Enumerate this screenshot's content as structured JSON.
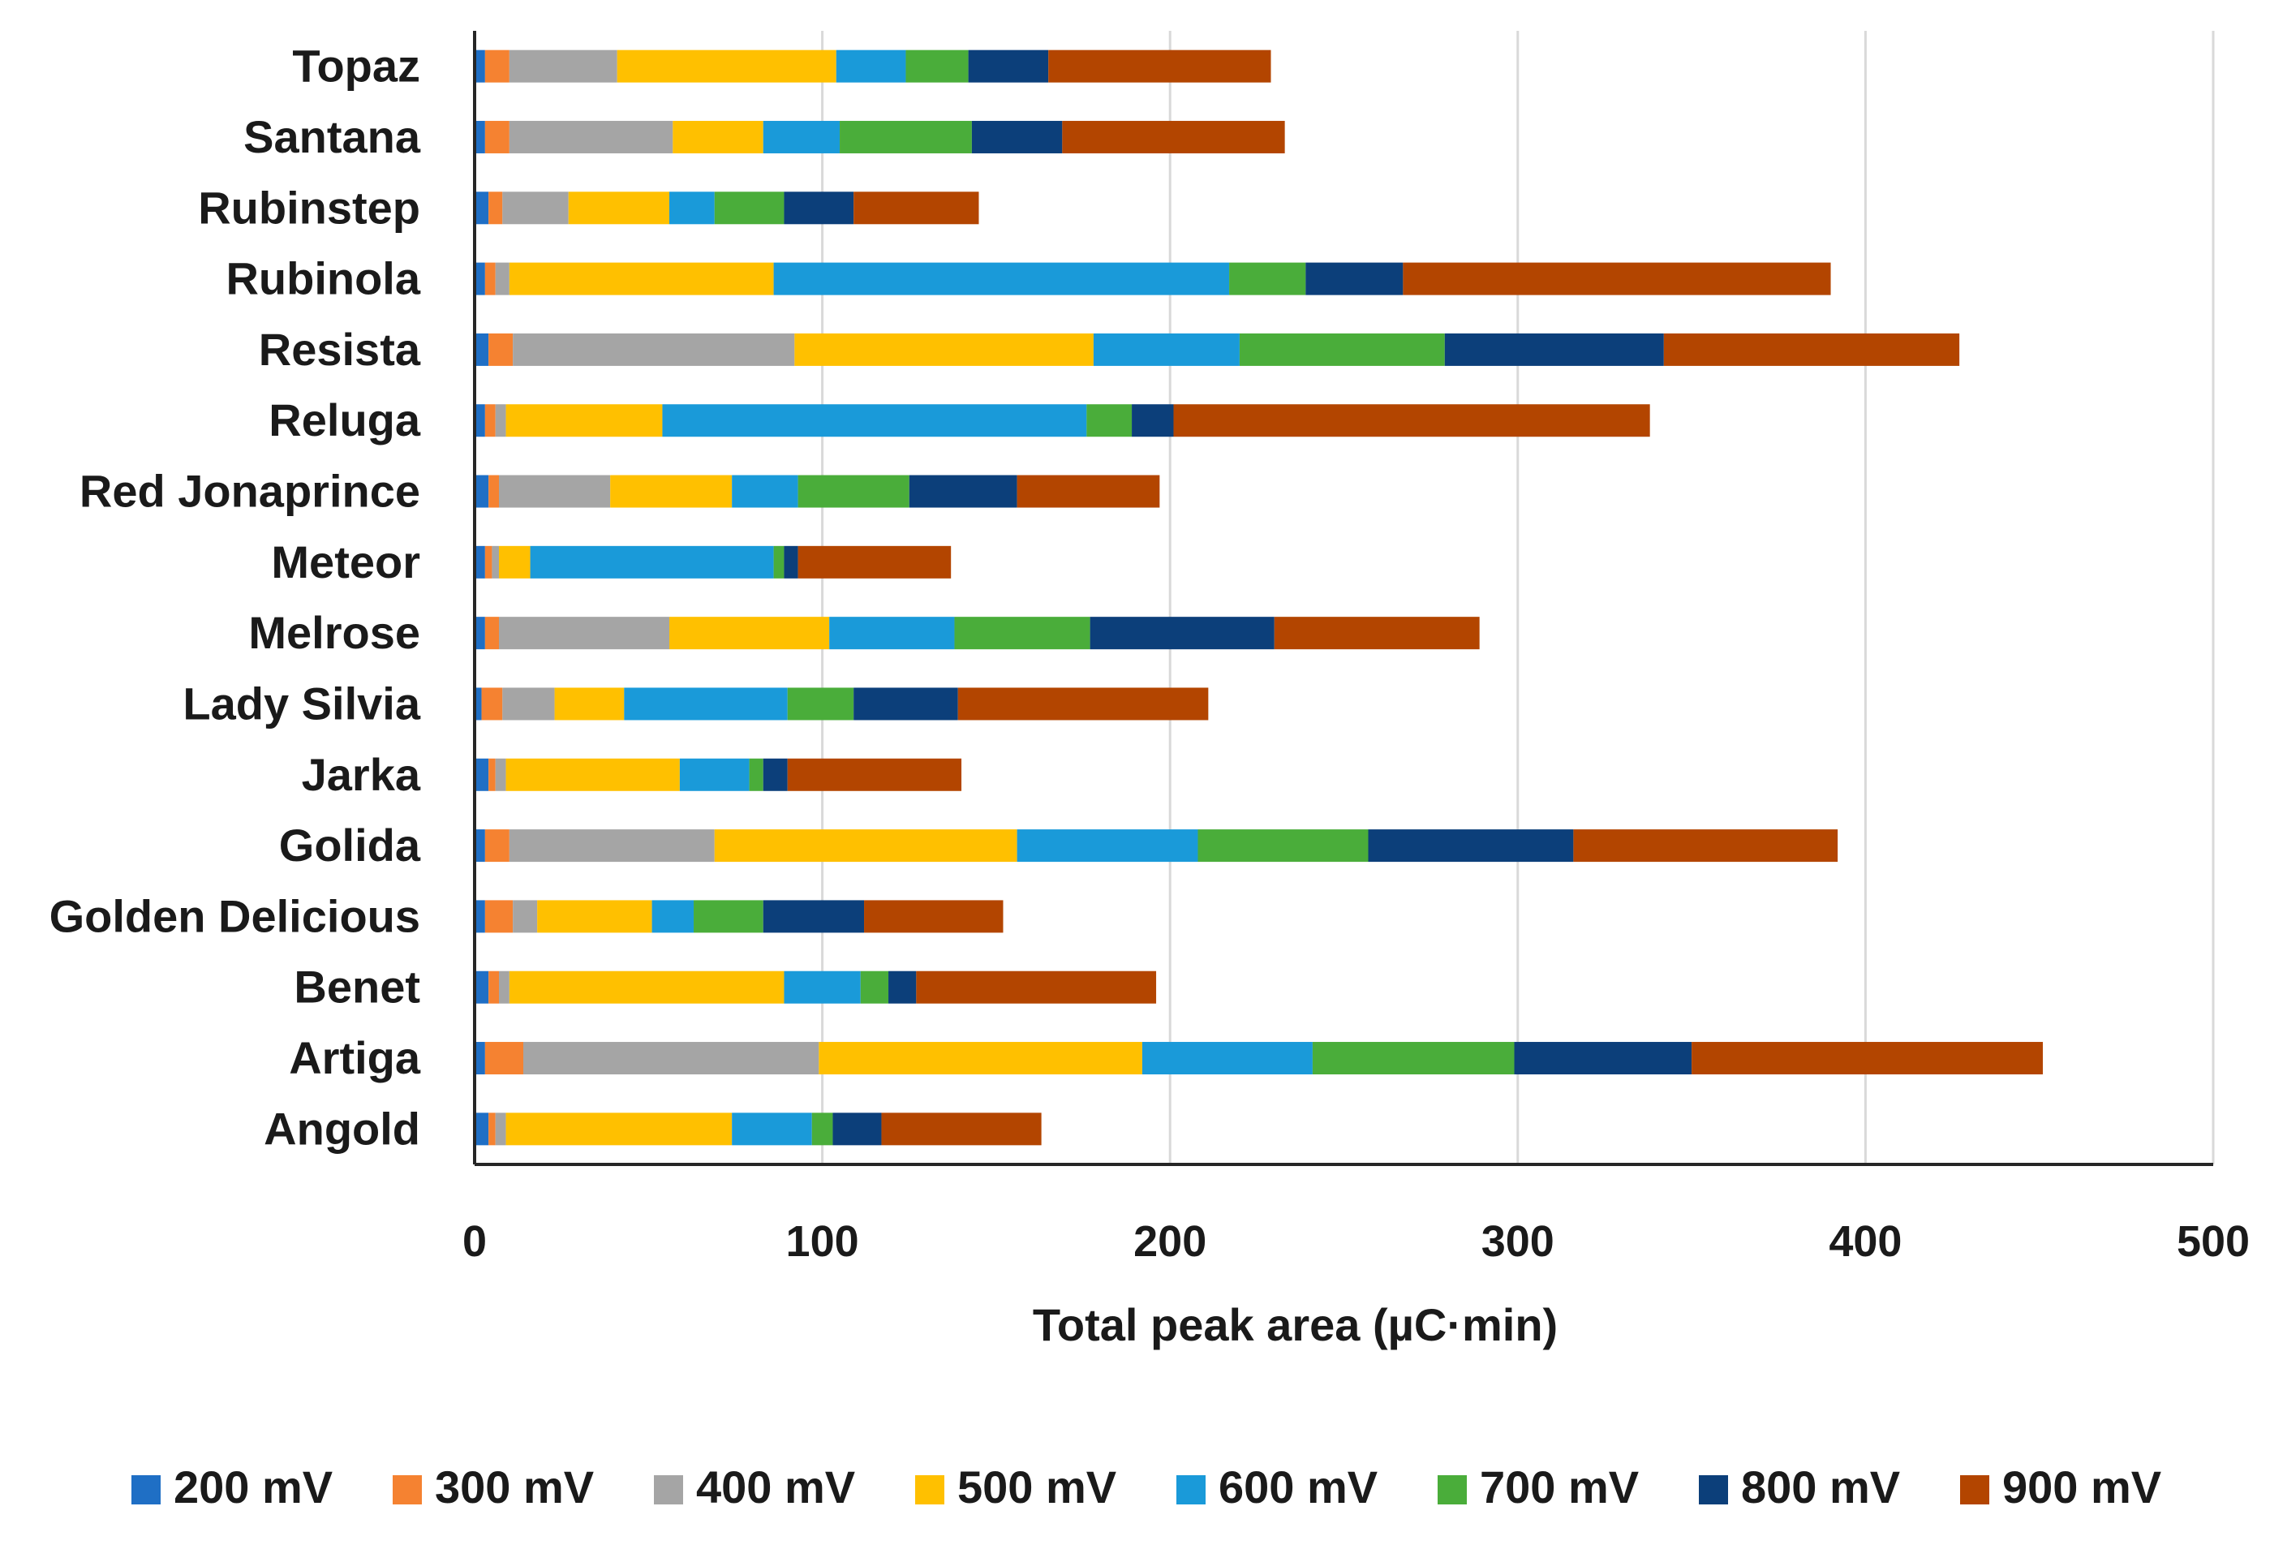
{
  "chart_data": {
    "type": "bar",
    "orientation": "horizontal",
    "stacked": true,
    "title": "",
    "xlabel": "Total peak area (µC·min)",
    "ylabel": "",
    "xlim": [
      0,
      500
    ],
    "xticks": [
      "0",
      "100",
      "200",
      "300",
      "400",
      "500"
    ],
    "grid": "vertical",
    "legend_position": "bottom",
    "categories": [
      "Topaz",
      "Santana",
      "Rubinstep",
      "Rubinola",
      "Resista",
      "Reluga",
      "Red Jonaprince",
      "Meteor",
      "Melrose",
      "Lady Silvia",
      "Jarka",
      "Golida",
      "Golden Delicious",
      "Benet",
      "Artiga",
      "Angold"
    ],
    "series": [
      {
        "name": "200 mV",
        "color": "#1f6fc5",
        "values": [
          3,
          3,
          4,
          3,
          4,
          3,
          4,
          3,
          3,
          2,
          4,
          3,
          3,
          4,
          3,
          4
        ]
      },
      {
        "name": "300 mV",
        "color": "#f58231",
        "values": [
          7,
          7,
          4,
          3,
          7,
          3,
          3,
          2,
          4,
          6,
          2,
          7,
          8,
          3,
          11,
          2
        ]
      },
      {
        "name": "400 mV",
        "color": "#a5a5a5",
        "values": [
          31,
          47,
          19,
          4,
          81,
          3,
          32,
          2,
          49,
          15,
          3,
          59,
          7,
          3,
          85,
          3
        ]
      },
      {
        "name": "500 mV",
        "color": "#ffc000",
        "values": [
          63,
          26,
          29,
          76,
          86,
          45,
          35,
          9,
          46,
          20,
          50,
          87,
          33,
          79,
          93,
          65
        ]
      },
      {
        "name": "600 mV",
        "color": "#1a9ad9",
        "values": [
          20,
          22,
          13,
          131,
          42,
          122,
          19,
          70,
          36,
          47,
          20,
          52,
          12,
          22,
          49,
          23
        ]
      },
      {
        "name": "700 mV",
        "color": "#4aad3a",
        "values": [
          18,
          38,
          20,
          22,
          59,
          13,
          32,
          3,
          39,
          19,
          4,
          49,
          20,
          8,
          58,
          6
        ]
      },
      {
        "name": "800 mV",
        "color": "#0c3f7a",
        "values": [
          23,
          26,
          20,
          28,
          63,
          12,
          31,
          4,
          53,
          30,
          7,
          59,
          29,
          8,
          51,
          14
        ]
      },
      {
        "name": "900 mV",
        "color": "#b34500",
        "values": [
          64,
          64,
          36,
          123,
          85,
          137,
          41,
          44,
          59,
          72,
          50,
          76,
          40,
          69,
          101,
          46
        ]
      }
    ]
  }
}
